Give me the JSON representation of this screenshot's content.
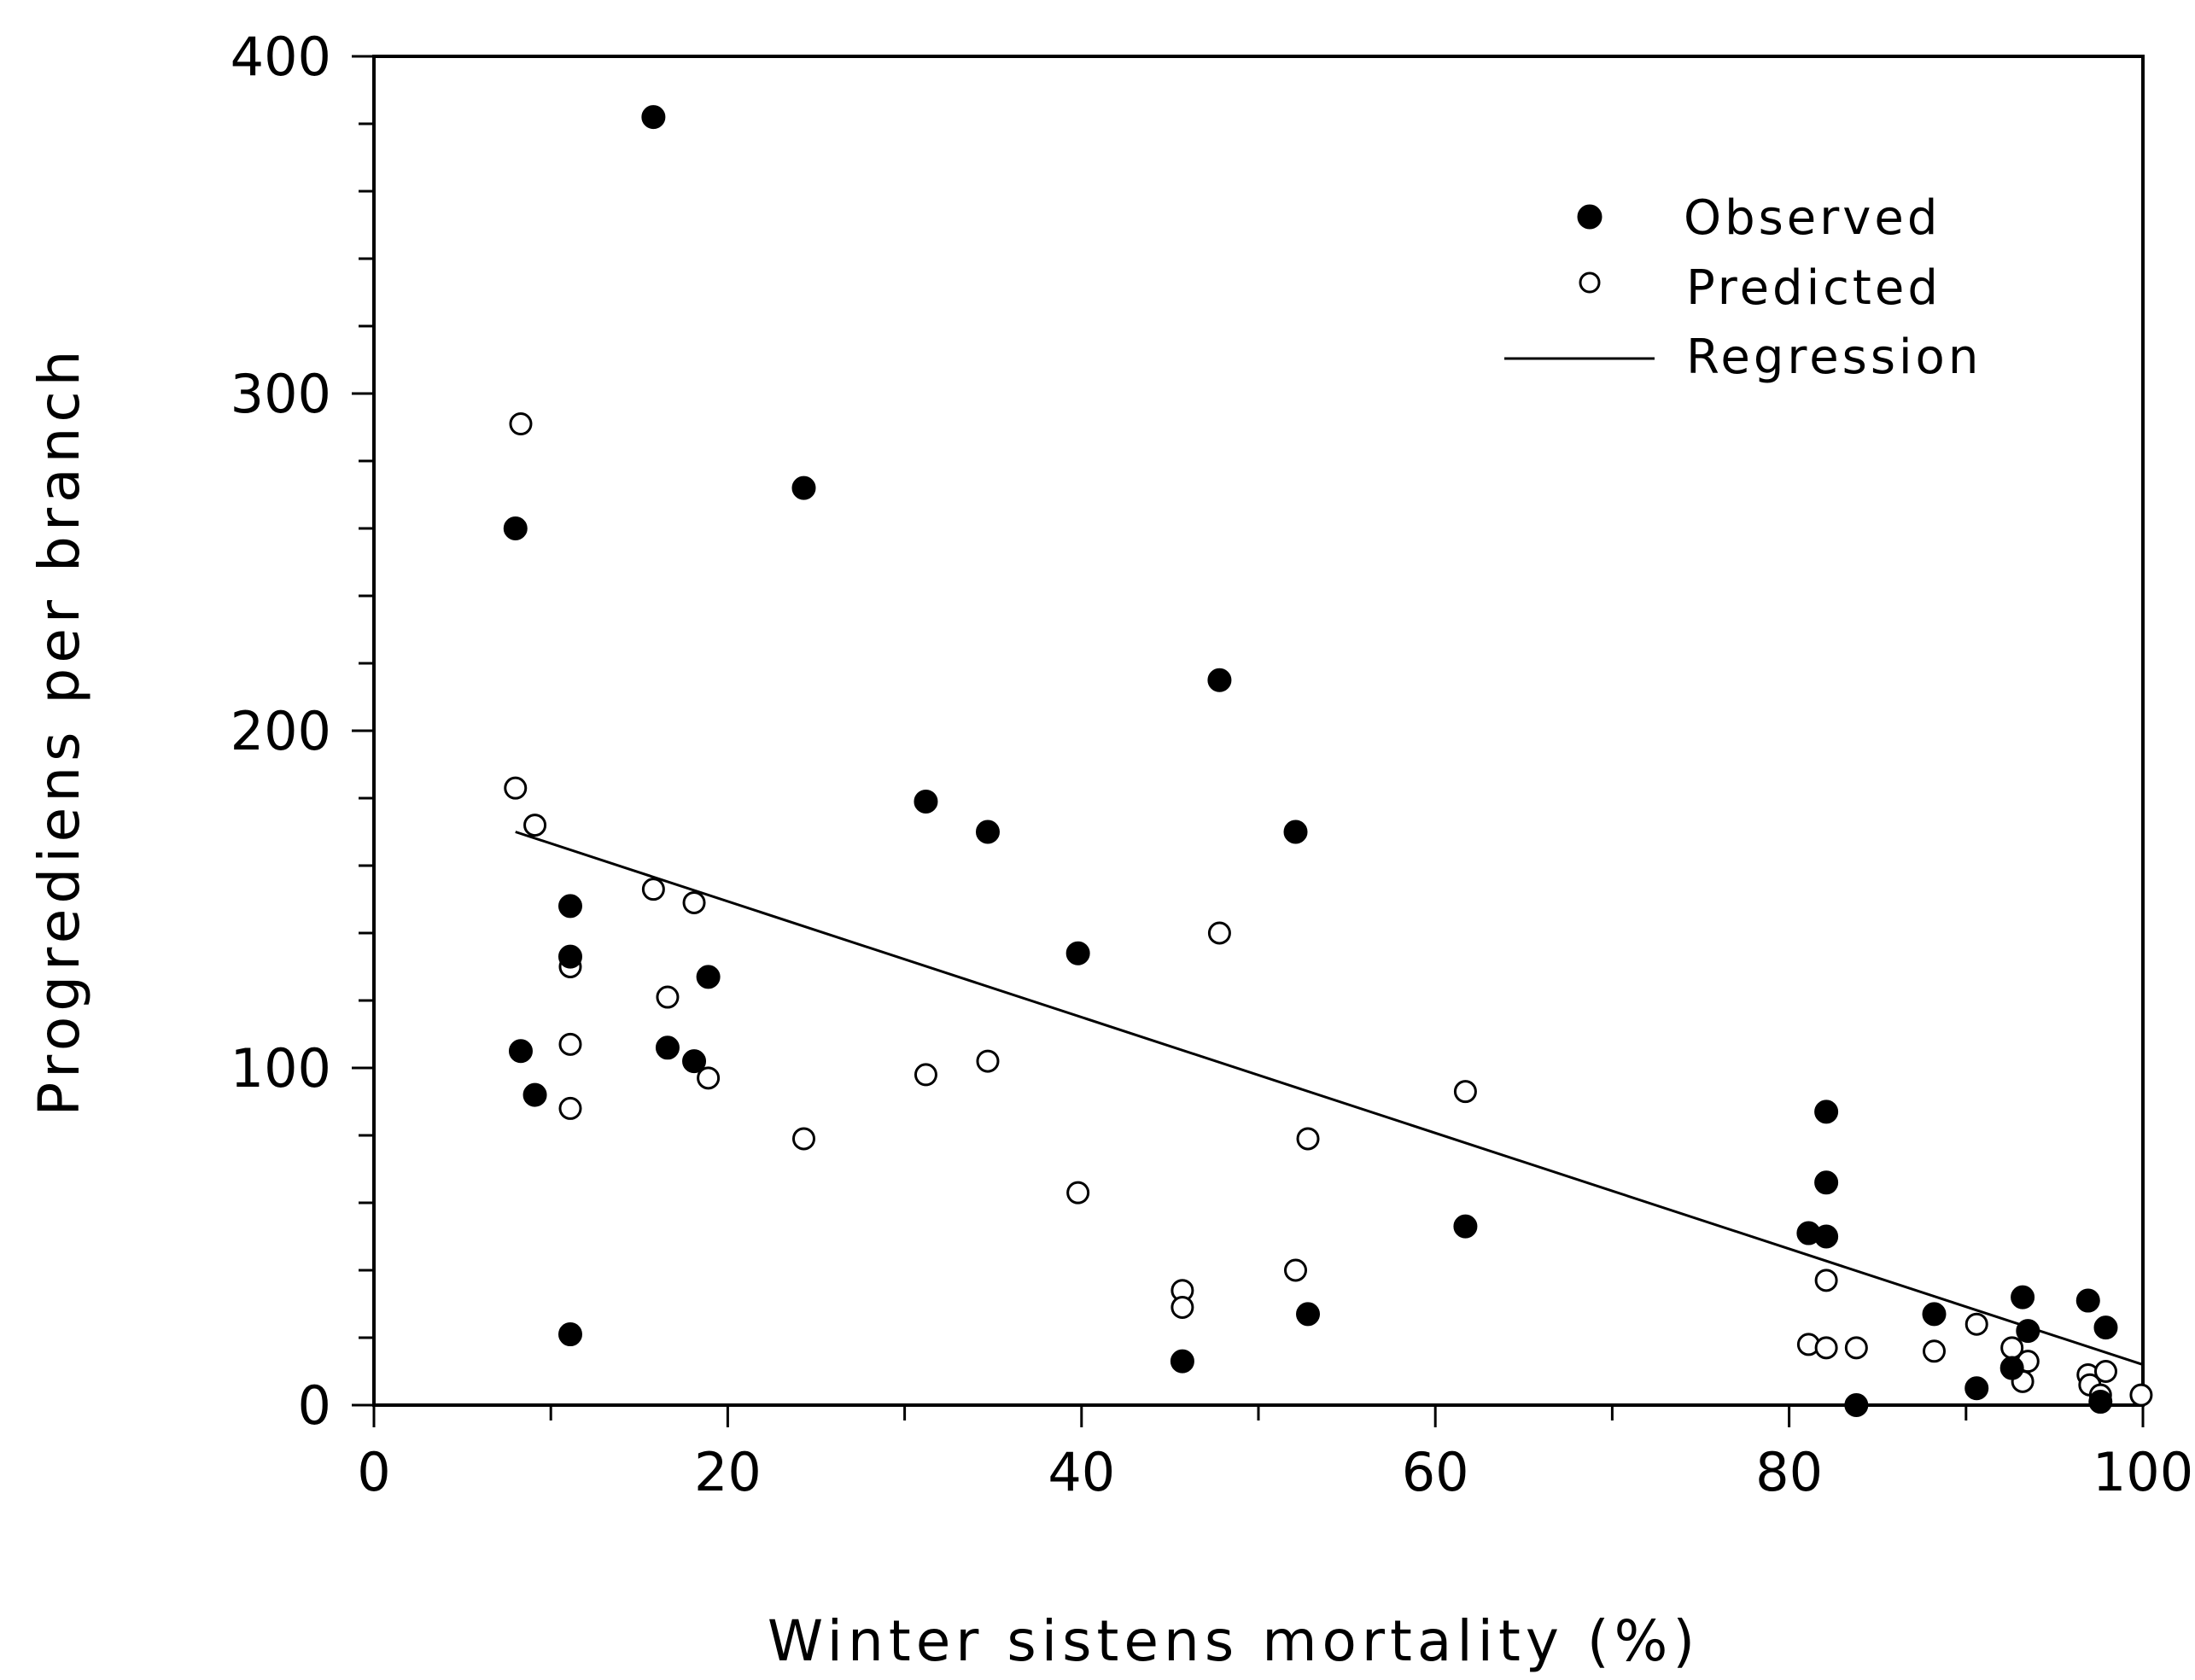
{
  "chart_data": {
    "type": "scatter",
    "title": "",
    "xlabel": "Winter sistens mortality (%)",
    "ylabel": "Progrediens per branch",
    "xlim": [
      0,
      100
    ],
    "ylim": [
      0,
      400
    ],
    "x_ticks": [
      0,
      20,
      40,
      60,
      80,
      100
    ],
    "y_ticks": [
      0,
      100,
      200,
      300,
      400
    ],
    "x_tick_labels": [
      "0",
      "20",
      "40",
      "60",
      "80",
      "100"
    ],
    "y_tick_labels": [
      "0",
      "100",
      "200",
      "300",
      "400"
    ],
    "grid": false,
    "legend_position": "top-right",
    "legend": {
      "observed": "Observed",
      "predicted": "Predicted",
      "regression": "Regression"
    },
    "series": [
      {
        "name": "Observed",
        "marker": "filled-circle",
        "points": [
          [
            15.8,
            382
          ],
          [
            8.0,
            260
          ],
          [
            24.3,
            272
          ],
          [
            47.8,
            215
          ],
          [
            31.2,
            179
          ],
          [
            34.7,
            170
          ],
          [
            52.1,
            170
          ],
          [
            11.1,
            148
          ],
          [
            11.1,
            133
          ],
          [
            39.8,
            134
          ],
          [
            18.9,
            127
          ],
          [
            8.3,
            105
          ],
          [
            16.6,
            106
          ],
          [
            18.1,
            102
          ],
          [
            9.1,
            92
          ],
          [
            11.1,
            21
          ],
          [
            45.7,
            13
          ],
          [
            52.8,
            27
          ],
          [
            61.7,
            53
          ],
          [
            82.1,
            87
          ],
          [
            82.1,
            66
          ],
          [
            81.1,
            51
          ],
          [
            82.1,
            50
          ],
          [
            83.8,
            0
          ],
          [
            88.2,
            27
          ],
          [
            90.6,
            5
          ],
          [
            92.6,
            11
          ],
          [
            93.2,
            32
          ],
          [
            93.5,
            22
          ],
          [
            96.9,
            31
          ],
          [
            97.9,
            23
          ],
          [
            97.6,
            1
          ]
        ]
      },
      {
        "name": "Predicted",
        "marker": "open-circle",
        "points": [
          [
            8.3,
            291
          ],
          [
            8.0,
            183
          ],
          [
            9.1,
            172
          ],
          [
            15.8,
            153
          ],
          [
            18.1,
            149
          ],
          [
            47.8,
            140
          ],
          [
            11.1,
            130
          ],
          [
            16.6,
            121
          ],
          [
            11.1,
            107
          ],
          [
            34.7,
            102
          ],
          [
            31.2,
            98
          ],
          [
            18.9,
            97
          ],
          [
            61.7,
            93
          ],
          [
            11.1,
            88
          ],
          [
            24.3,
            79
          ],
          [
            52.8,
            79
          ],
          [
            39.8,
            63
          ],
          [
            52.1,
            40
          ],
          [
            45.7,
            34
          ],
          [
            45.7,
            29
          ],
          [
            82.1,
            37
          ],
          [
            90.6,
            24
          ],
          [
            81.1,
            18
          ],
          [
            82.1,
            17
          ],
          [
            83.8,
            17
          ],
          [
            88.2,
            16
          ],
          [
            92.6,
            17
          ],
          [
            93.5,
            13
          ],
          [
            93.2,
            7
          ],
          [
            96.9,
            9
          ],
          [
            97.0,
            6
          ],
          [
            97.9,
            10
          ],
          [
            97.6,
            3
          ],
          [
            99.9,
            3
          ]
        ]
      }
    ],
    "regression": {
      "name": "Regression",
      "x": [
        8.0,
        100
      ],
      "y": [
        170,
        12
      ]
    }
  }
}
